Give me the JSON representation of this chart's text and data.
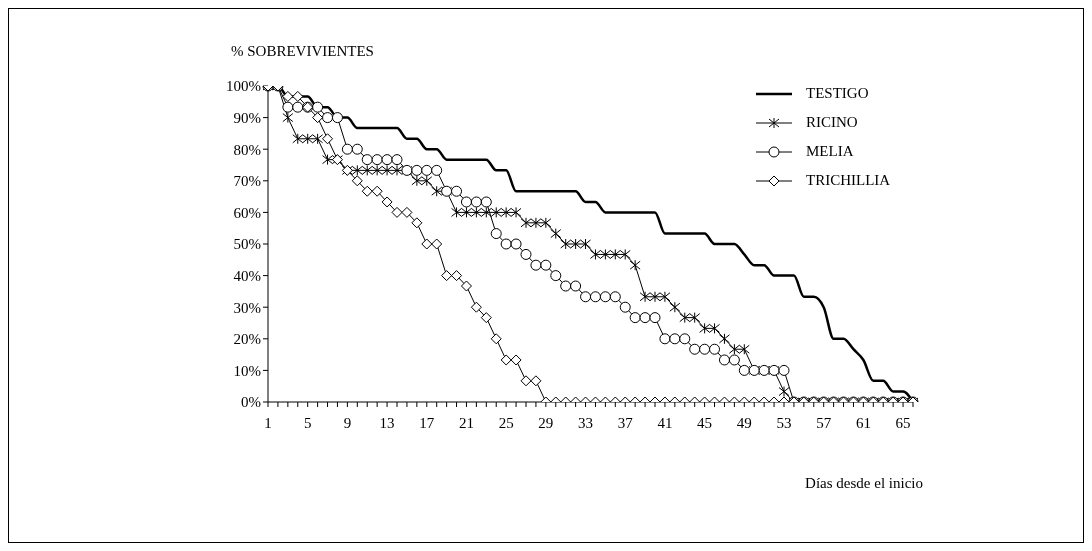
{
  "chart_data": {
    "type": "line",
    "ylabel": "% SOBREVIVIENTES",
    "xlabel": "Días desde el inicio",
    "categories": [
      "1",
      null,
      null,
      null,
      "5",
      null,
      null,
      null,
      "9",
      null,
      null,
      null,
      "13",
      null,
      null,
      null,
      "17",
      null,
      null,
      null,
      "21",
      null,
      null,
      null,
      "25",
      null,
      null,
      null,
      "29",
      null,
      null,
      null,
      "33",
      null,
      null,
      null,
      "37",
      null,
      null,
      null,
      "41",
      null,
      null,
      null,
      "45",
      null,
      null,
      null,
      "49",
      null,
      null,
      null,
      "53",
      null,
      null,
      null,
      "57",
      null,
      null,
      null,
      "61",
      null,
      null,
      null,
      "65",
      null
    ],
    "ylim": [
      0,
      100
    ],
    "yticks": [
      {
        "value": 0,
        "label": "0%"
      },
      {
        "value": 10,
        "label": "10%"
      },
      {
        "value": 20,
        "label": "20%"
      },
      {
        "value": 30,
        "label": "30%"
      },
      {
        "value": 40,
        "label": "40%"
      },
      {
        "value": 50,
        "label": "50%"
      },
      {
        "value": 60,
        "label": "60%"
      },
      {
        "value": 70,
        "label": "70%"
      },
      {
        "value": 80,
        "label": "80%"
      },
      {
        "value": 90,
        "label": "90%"
      },
      {
        "value": 100,
        "label": "100%"
      }
    ],
    "legend": "top right",
    "series": [
      {
        "name": "TESTIGO",
        "color": "#000000",
        "marker": "none",
        "values": [
          100,
          100,
          96.7,
          96.7,
          96.7,
          93.3,
          93.3,
          90,
          90,
          86.7,
          86.7,
          86.7,
          86.7,
          86.7,
          83.3,
          83.3,
          80,
          80,
          76.7,
          76.7,
          76.7,
          76.7,
          76.7,
          73.3,
          73.3,
          66.7,
          66.7,
          66.7,
          66.7,
          66.7,
          66.7,
          66.7,
          63.3,
          63.3,
          60,
          60,
          60,
          60,
          60,
          60,
          53.3,
          53.3,
          53.3,
          53.3,
          53.3,
          50,
          50,
          50,
          46.7,
          43.3,
          43.3,
          40,
          40,
          40,
          33.3,
          33.3,
          30,
          20,
          20,
          16.7,
          13.3,
          6.7,
          6.7,
          3.3,
          3.3,
          0
        ]
      },
      {
        "name": "RICINO",
        "color": "#000000",
        "marker": "cross",
        "values": [
          100,
          100,
          90,
          83.3,
          83.3,
          83.3,
          76.7,
          76.7,
          73.3,
          73.3,
          73.3,
          73.3,
          73.3,
          73.3,
          73.3,
          70,
          70,
          66.7,
          66.7,
          60,
          60,
          60,
          60,
          60,
          60,
          60,
          56.7,
          56.7,
          56.7,
          53.3,
          50,
          50,
          50,
          46.7,
          46.7,
          46.7,
          46.7,
          43.3,
          33.3,
          33.3,
          33.3,
          30,
          26.7,
          26.7,
          23.3,
          23.3,
          20,
          16.7,
          16.7,
          10,
          10,
          10,
          3.3,
          0,
          0,
          0,
          0,
          0,
          0,
          0,
          0,
          0,
          0,
          0,
          0,
          0
        ]
      },
      {
        "name": "MELIA",
        "color": "#000000",
        "marker": "circle",
        "values": [
          100,
          100,
          93.3,
          93.3,
          93.3,
          93.3,
          90,
          90,
          80,
          80,
          76.7,
          76.7,
          76.7,
          76.7,
          73.3,
          73.3,
          73.3,
          73.3,
          66.7,
          66.7,
          63.3,
          63.3,
          63.3,
          53.3,
          50,
          50,
          46.7,
          43.3,
          43.3,
          40,
          36.7,
          36.7,
          33.3,
          33.3,
          33.3,
          33.3,
          30,
          26.7,
          26.7,
          26.7,
          20,
          20,
          20,
          16.7,
          16.7,
          16.7,
          13.3,
          13.3,
          10,
          10,
          10,
          10,
          10,
          0,
          0,
          0,
          0,
          0,
          0,
          0,
          0,
          0,
          0,
          0,
          0,
          0
        ]
      },
      {
        "name": "TRICHILLIA",
        "color": "#000000",
        "marker": "diamond",
        "values": [
          100,
          100,
          96.7,
          96.7,
          93.3,
          90,
          83.3,
          76.7,
          73.3,
          70,
          66.7,
          66.7,
          63.3,
          60,
          60,
          56.7,
          50,
          50,
          40,
          40,
          36.7,
          30,
          26.7,
          20,
          13.3,
          13.3,
          6.7,
          6.7,
          0,
          0,
          0,
          0,
          0,
          0,
          0,
          0,
          0,
          0,
          0,
          0,
          0,
          0,
          0,
          0,
          0,
          0,
          0,
          0,
          0,
          0,
          0,
          0,
          0,
          0,
          0,
          0,
          0,
          0,
          0,
          0,
          0,
          0,
          0,
          0,
          0,
          0
        ]
      }
    ]
  }
}
